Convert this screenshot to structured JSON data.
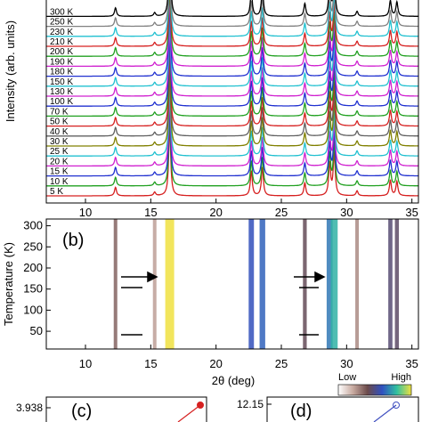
{
  "chart_data": [
    {
      "type": "stacked-line",
      "label_ylabel": "Intensity (arb. units)",
      "categories": [
        "5 K",
        "10 K",
        "15 K",
        "20 K",
        "25 K",
        "30 K",
        "40 K",
        "50 K",
        "70 K",
        "100 K",
        "130 K",
        "150 K",
        "180 K",
        "190 K",
        "200 K",
        "210 K",
        "230 K",
        "250 K",
        "300 K"
      ],
      "colors": [
        "#d62020",
        "#20a020",
        "#2030d0",
        "#d020d0",
        "#20c0d0",
        "#808000",
        "#606060",
        "#d62020",
        "#20a020",
        "#2030d0",
        "#d020d0",
        "#20c0d0",
        "#2030d0",
        "#d020d0",
        "#20a020",
        "#d62020",
        "#20c0d0",
        "#808080",
        "#000000"
      ],
      "peaks": {
        "positions": [
          12.3,
          15.3,
          16.45,
          22.7,
          23.55,
          26.8,
          28.7,
          29.05,
          30.8,
          33.35,
          33.85
        ],
        "heights": [
          1.2,
          0.5,
          10,
          3.5,
          4,
          1.8,
          4.5,
          6,
          0.7,
          2.2,
          2
        ]
      },
      "xlim": [
        7,
        35.5
      ],
      "xticks": [
        10,
        15,
        20,
        25,
        30,
        35
      ]
    },
    {
      "type": "heatmap",
      "label": "(b)",
      "xlabel": "2θ (deg)",
      "ylabel": "Temperature (K)",
      "xlim": [
        7,
        35.5
      ],
      "xticks": [
        10,
        15,
        20,
        25,
        30,
        35
      ],
      "ylim": [
        8,
        316
      ],
      "yticks": [
        50,
        100,
        150,
        200,
        250,
        300
      ],
      "colormap": [
        "#ffffff",
        "#c8aaa0",
        "#6b4a4a",
        "#3050c0",
        "#30c0a0",
        "#f0e040"
      ],
      "colorbar_labels": [
        "Low",
        "High"
      ]
    },
    {
      "type": "line",
      "label": "(c)",
      "yticks": [
        {
          "value": 3.938,
          "label": "3.938"
        }
      ],
      "color": "#d62020"
    },
    {
      "type": "line",
      "label": "(d)",
      "yticks": [
        {
          "value": 12.15,
          "label": "12.15"
        }
      ],
      "color": "#4050c0"
    }
  ]
}
